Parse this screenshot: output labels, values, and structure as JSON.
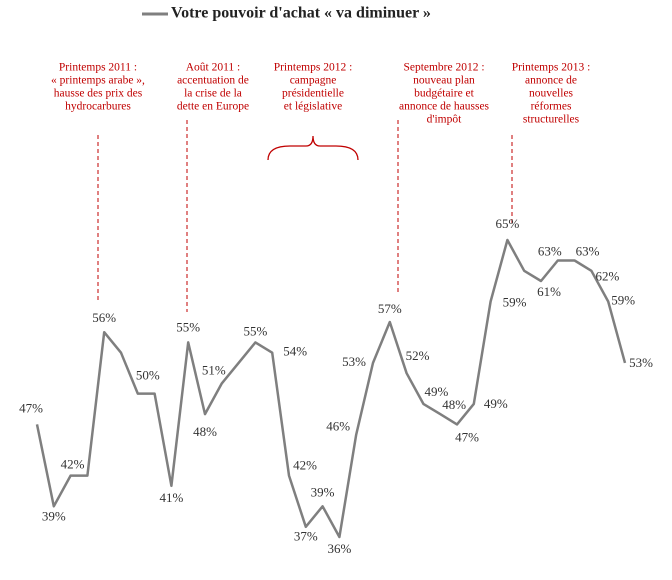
{
  "chart_data": {
    "type": "line",
    "series": [
      {
        "name": "Votre pouvoir d'achat « va diminuer »",
        "color": "#7f7f7f",
        "values": [
          47,
          39,
          42,
          42,
          56,
          54,
          50,
          50,
          41,
          55,
          48,
          51,
          53,
          55,
          54,
          42,
          37,
          39,
          36,
          46,
          53,
          57,
          52,
          49,
          48,
          47,
          49,
          59,
          65,
          62,
          61,
          63,
          63,
          62,
          59,
          53
        ],
        "value_labels": [
          "47%",
          "39%",
          "42%",
          null,
          "56%",
          null,
          "50%",
          null,
          "41%",
          "55%",
          "48%",
          "51%",
          null,
          "55%",
          "54%",
          "42%",
          "37%",
          "39%",
          "36%",
          "46%",
          "53%",
          "57%",
          "52%",
          "49%",
          "48%",
          "47%",
          "49%",
          "59%",
          "65%",
          null,
          "61%",
          "63%",
          "63%",
          "62%",
          "59%",
          "53%"
        ]
      }
    ],
    "annotations": [
      [
        "Printemps 2011 :",
        "« printemps arabe »,",
        "hausse des prix des",
        "hydrocarbures"
      ],
      [
        "Août 2011 :",
        "accentuation de",
        "la crise de la",
        "dette en Europe"
      ],
      [
        "Printemps 2012 :",
        "campagne",
        "présidentielle",
        "et législative"
      ],
      [
        "Septembre 2012 :",
        "nouveau plan",
        "budgétaire et",
        "annonce de hausses",
        "d'impôt"
      ],
      [
        "Printemps 2013 :",
        "annonce de",
        "nouvelles",
        "réformes",
        "structurelles"
      ]
    ]
  }
}
